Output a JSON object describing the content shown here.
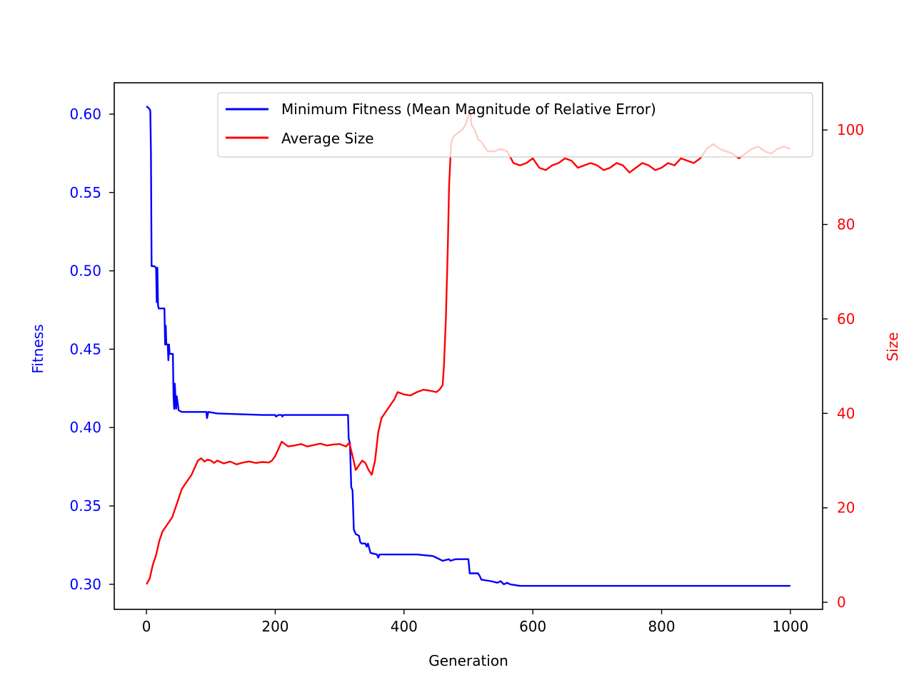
{
  "chart_data": {
    "type": "line",
    "xlabel": "Generation",
    "ylabel_left": "Fitness",
    "ylabel_right": "Size",
    "xlim": [
      -50,
      1050
    ],
    "ylim_left": [
      0.284,
      0.62
    ],
    "ylim_right": [
      -1.5,
      110
    ],
    "x_ticks": [
      0,
      200,
      400,
      600,
      800,
      1000
    ],
    "y_ticks_left": [
      0.3,
      0.35,
      0.4,
      0.45,
      0.5,
      0.55,
      0.6
    ],
    "y_ticks_right": [
      0,
      20,
      40,
      60,
      80,
      100
    ],
    "left_axis_color": "#0000ff",
    "right_axis_color": "#ff0000",
    "grid": false,
    "legend_position": "top-right",
    "series": [
      {
        "name": "Minimum Fitness (Mean Magnitude of Relative Error)",
        "axis": "left",
        "color": "#0000ff",
        "points": [
          [
            0,
            0.605
          ],
          [
            3,
            0.604
          ],
          [
            5,
            0.603
          ],
          [
            6,
            0.602
          ],
          [
            7,
            0.575
          ],
          [
            8,
            0.503
          ],
          [
            12,
            0.503
          ],
          [
            15,
            0.502
          ],
          [
            16,
            0.48
          ],
          [
            17,
            0.502
          ],
          [
            18,
            0.478
          ],
          [
            19,
            0.476
          ],
          [
            28,
            0.476
          ],
          [
            29,
            0.453
          ],
          [
            30,
            0.465
          ],
          [
            31,
            0.453
          ],
          [
            33,
            0.453
          ],
          [
            34,
            0.443
          ],
          [
            35,
            0.453
          ],
          [
            36,
            0.447
          ],
          [
            41,
            0.447
          ],
          [
            42,
            0.42
          ],
          [
            43,
            0.412
          ],
          [
            44,
            0.428
          ],
          [
            46,
            0.412
          ],
          [
            47,
            0.42
          ],
          [
            50,
            0.411
          ],
          [
            55,
            0.41
          ],
          [
            93,
            0.41
          ],
          [
            94,
            0.406
          ],
          [
            96,
            0.41
          ],
          [
            110,
            0.409
          ],
          [
            180,
            0.408
          ],
          [
            200,
            0.408
          ],
          [
            201,
            0.407
          ],
          [
            205,
            0.408
          ],
          [
            210,
            0.408
          ],
          [
            211,
            0.407
          ],
          [
            213,
            0.408
          ],
          [
            313,
            0.408
          ],
          [
            314,
            0.393
          ],
          [
            316,
            0.39
          ],
          [
            318,
            0.362
          ],
          [
            320,
            0.36
          ],
          [
            322,
            0.335
          ],
          [
            325,
            0.332
          ],
          [
            330,
            0.331
          ],
          [
            332,
            0.327
          ],
          [
            334,
            0.326
          ],
          [
            340,
            0.326
          ],
          [
            342,
            0.324
          ],
          [
            344,
            0.326
          ],
          [
            348,
            0.32
          ],
          [
            358,
            0.319
          ],
          [
            360,
            0.317
          ],
          [
            362,
            0.319
          ],
          [
            420,
            0.319
          ],
          [
            445,
            0.318
          ],
          [
            450,
            0.317
          ],
          [
            460,
            0.315
          ],
          [
            470,
            0.316
          ],
          [
            472,
            0.315
          ],
          [
            480,
            0.316
          ],
          [
            500,
            0.316
          ],
          [
            502,
            0.307
          ],
          [
            515,
            0.307
          ],
          [
            518,
            0.305
          ],
          [
            520,
            0.303
          ],
          [
            535,
            0.302
          ],
          [
            545,
            0.301
          ],
          [
            550,
            0.302
          ],
          [
            555,
            0.3
          ],
          [
            560,
            0.301
          ],
          [
            565,
            0.3
          ],
          [
            580,
            0.299
          ],
          [
            1000,
            0.299
          ]
        ]
      },
      {
        "name": "Average Size",
        "axis": "right",
        "color": "#ff0000",
        "points": [
          [
            0,
            3.8
          ],
          [
            5,
            5
          ],
          [
            10,
            8
          ],
          [
            15,
            10
          ],
          [
            20,
            13
          ],
          [
            25,
            15
          ],
          [
            30,
            16
          ],
          [
            35,
            17
          ],
          [
            40,
            18
          ],
          [
            45,
            20
          ],
          [
            50,
            22
          ],
          [
            55,
            24
          ],
          [
            60,
            25
          ],
          [
            65,
            26
          ],
          [
            70,
            27
          ],
          [
            75,
            28.5
          ],
          [
            80,
            30
          ],
          [
            85,
            30.5
          ],
          [
            90,
            29.8
          ],
          [
            95,
            30.2
          ],
          [
            100,
            30
          ],
          [
            105,
            29.5
          ],
          [
            110,
            30
          ],
          [
            120,
            29.4
          ],
          [
            130,
            29.8
          ],
          [
            140,
            29.2
          ],
          [
            150,
            29.6
          ],
          [
            160,
            29.8
          ],
          [
            170,
            29.5
          ],
          [
            180,
            29.7
          ],
          [
            190,
            29.6
          ],
          [
            195,
            30
          ],
          [
            200,
            31
          ],
          [
            205,
            32.5
          ],
          [
            210,
            34
          ],
          [
            215,
            33.5
          ],
          [
            220,
            33
          ],
          [
            230,
            33.2
          ],
          [
            240,
            33.5
          ],
          [
            250,
            33
          ],
          [
            260,
            33.3
          ],
          [
            270,
            33.6
          ],
          [
            280,
            33.2
          ],
          [
            290,
            33.4
          ],
          [
            300,
            33.5
          ],
          [
            310,
            33
          ],
          [
            315,
            33.8
          ],
          [
            320,
            31
          ],
          [
            325,
            28
          ],
          [
            330,
            29
          ],
          [
            335,
            30
          ],
          [
            340,
            29.5
          ],
          [
            345,
            28
          ],
          [
            350,
            27
          ],
          [
            355,
            30
          ],
          [
            360,
            36
          ],
          [
            365,
            39
          ],
          [
            370,
            40
          ],
          [
            375,
            41
          ],
          [
            380,
            42
          ],
          [
            385,
            43
          ],
          [
            390,
            44.5
          ],
          [
            400,
            44
          ],
          [
            410,
            43.8
          ],
          [
            420,
            44.5
          ],
          [
            430,
            45
          ],
          [
            440,
            44.8
          ],
          [
            450,
            44.5
          ],
          [
            455,
            45
          ],
          [
            460,
            46
          ],
          [
            462,
            50
          ],
          [
            465,
            60
          ],
          [
            468,
            75
          ],
          [
            470,
            88
          ],
          [
            473,
            97
          ],
          [
            476,
            98.5
          ],
          [
            480,
            99
          ],
          [
            490,
            100
          ],
          [
            495,
            101
          ],
          [
            500,
            103
          ],
          [
            502,
            105
          ],
          [
            505,
            101
          ],
          [
            510,
            100
          ],
          [
            515,
            98
          ],
          [
            520,
            97.5
          ],
          [
            525,
            96.5
          ],
          [
            530,
            95.5
          ],
          [
            540,
            95.5
          ],
          [
            550,
            96
          ],
          [
            560,
            95.5
          ],
          [
            570,
            93
          ],
          [
            580,
            92.5
          ],
          [
            590,
            93
          ],
          [
            600,
            94
          ],
          [
            610,
            92
          ],
          [
            620,
            91.5
          ],
          [
            630,
            92.5
          ],
          [
            640,
            93
          ],
          [
            650,
            94
          ],
          [
            660,
            93.5
          ],
          [
            670,
            92
          ],
          [
            680,
            92.5
          ],
          [
            690,
            93
          ],
          [
            700,
            92.5
          ],
          [
            710,
            91.5
          ],
          [
            720,
            92
          ],
          [
            730,
            93
          ],
          [
            740,
            92.5
          ],
          [
            750,
            91
          ],
          [
            760,
            92
          ],
          [
            770,
            93
          ],
          [
            780,
            92.5
          ],
          [
            790,
            91.5
          ],
          [
            800,
            92
          ],
          [
            810,
            93
          ],
          [
            820,
            92.5
          ],
          [
            830,
            94
          ],
          [
            840,
            93.5
          ],
          [
            850,
            93
          ],
          [
            860,
            94
          ],
          [
            870,
            96
          ],
          [
            880,
            97
          ],
          [
            890,
            96
          ],
          [
            900,
            95.5
          ],
          [
            910,
            95
          ],
          [
            920,
            94
          ],
          [
            930,
            95
          ],
          [
            940,
            96
          ],
          [
            950,
            96.5
          ],
          [
            960,
            95.5
          ],
          [
            970,
            95
          ],
          [
            980,
            96
          ],
          [
            990,
            96.5
          ],
          [
            1000,
            96
          ]
        ]
      }
    ]
  }
}
